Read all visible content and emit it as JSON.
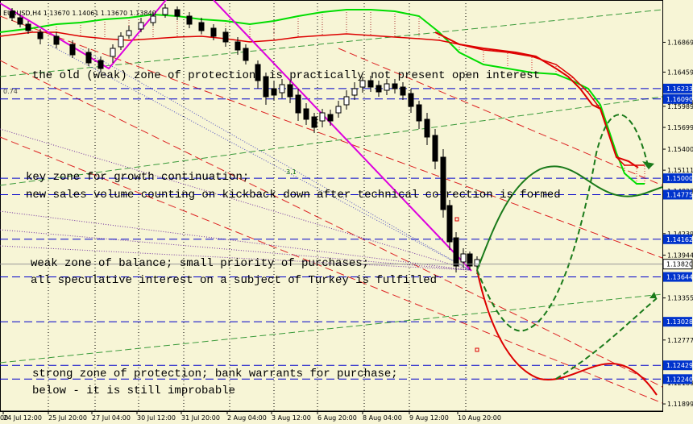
{
  "chart_data": {
    "type": "candlestick",
    "symbol_line": "EURUSD,H4  1.13670 1.14061 1.13670 1.13840",
    "ylim": [
      1.118,
      1.1745
    ],
    "price_ticks": [
      "1.16869",
      "1.16459",
      "1.16049",
      "1.15989",
      "1.15699",
      "1.15400",
      "1.15111",
      "1.14823",
      "1.14239",
      "1.13944",
      "1.13355",
      "1.12777",
      "1.12189",
      "1.11899"
    ],
    "level_labels": [
      {
        "value": 1.16233,
        "label": "1.16233"
      },
      {
        "value": 1.1609,
        "label": "1.16090"
      },
      {
        "value": 1.15,
        "label": "1.15000"
      },
      {
        "value": 1.14775,
        "label": "1.14775"
      },
      {
        "value": 1.14162,
        "label": "1.14162"
      },
      {
        "value": 1.13644,
        "label": "1.13644"
      },
      {
        "value": 1.13028,
        "label": "1.13028"
      },
      {
        "value": 1.12429,
        "label": "1.12429"
      },
      {
        "value": 1.1224,
        "label": "1.12240"
      }
    ],
    "current_price": {
      "value": 1.1382,
      "label": "1.13820"
    },
    "time_labels": [
      "24 Jul 12:00",
      "25 Jul 20:00",
      "27 Jul 04:00",
      "30 Jul 12:00",
      "31 Jul 20:00",
      "2 Aug 04:00",
      "3 Aug 12:00",
      "6 Aug 20:00",
      "8 Aug 04:00",
      "9 Aug 12:00",
      "10 Aug 20:00"
    ],
    "time_label_left_fragment": "00",
    "fib_label": "3.1",
    "fib_label_2": "0.74",
    "annotations": [
      "the old (weak) zone of protection, is practically not present open interest",
      "key zone for growth continuation;",
      "new sales volume counting on kickback down after technical correction is formed",
      "weak zone of balance; small priority of purchases;",
      "all speculative interest on a subject of Turkey is fulfilled",
      "strong zone of protection; bank warrants for purchase;",
      "below - it is still improbable"
    ],
    "colors": {
      "background": "#f7f5d6",
      "level_line": "#0000cc",
      "price_box": "#0033cc",
      "kumo_green": "#00dd00",
      "kumo_red": "#dd0000",
      "trend_magenta": "#dd00dd",
      "forecast_green": "#1a7a1a",
      "forecast_red": "#dd0000"
    }
  }
}
